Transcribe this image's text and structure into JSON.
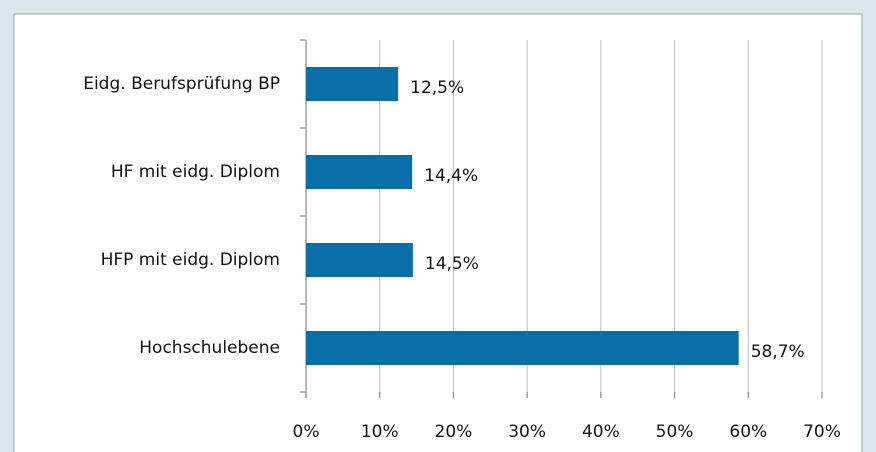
{
  "chart_data": {
    "type": "bar",
    "orientation": "horizontal",
    "categories": [
      "Eidg. Berufsprüfung BP",
      "HF mit eidg. Diplom",
      "HFP mit eidg. Diplom",
      "Hochschulebene"
    ],
    "values": [
      12.5,
      14.4,
      14.5,
      58.7
    ],
    "value_labels": [
      "12,5%",
      "14,4%",
      "14,5%",
      "58,7%"
    ],
    "color": "#0a6fa6",
    "xlim": [
      0,
      70
    ],
    "xticks": [
      {
        "value": 0,
        "label": "0%"
      },
      {
        "value": 10,
        "label": "10%"
      },
      {
        "value": 20,
        "label": "20%"
      },
      {
        "value": 30,
        "label": "30%"
      },
      {
        "value": 40,
        "label": "40%"
      },
      {
        "value": 50,
        "label": "50%"
      },
      {
        "value": 60,
        "label": "60%"
      },
      {
        "value": 70,
        "label": "70%"
      }
    ],
    "grid": true
  }
}
